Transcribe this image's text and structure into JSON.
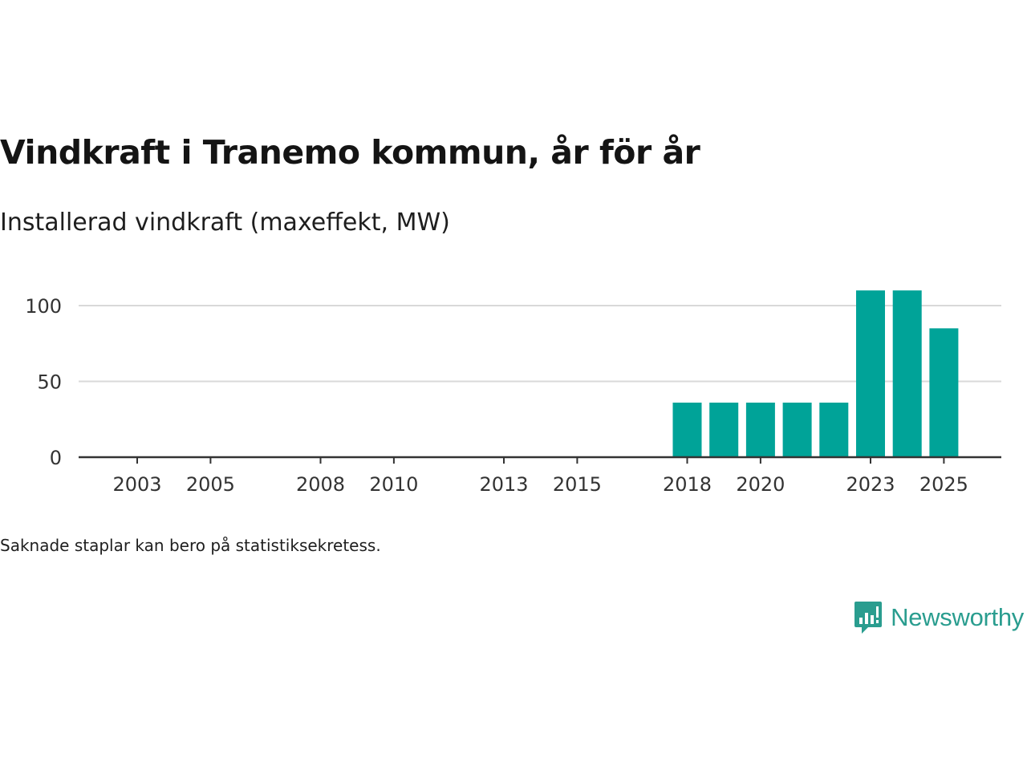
{
  "title": "Vindkraft i Tranemo kommun, år för år",
  "subtitle": "Installerad vindkraft (maxeffekt, MW)",
  "footnote": "Saknade staplar kan bero på statistiksekretess.",
  "brand": {
    "name": "Newsworthy",
    "icon": "bar-chart-speech-bubble-icon",
    "color": "#2a9d8f"
  },
  "colors": {
    "bar": "#00a398",
    "grid": "#d9d9d9",
    "axis": "#333333",
    "tick_text": "#333333"
  },
  "chart_data": {
    "type": "bar",
    "title": "Vindkraft i Tranemo kommun, år för år",
    "subtitle": "Installerad vindkraft (maxeffekt, MW)",
    "xlabel": "",
    "ylabel": "",
    "x": [
      2003,
      2004,
      2005,
      2006,
      2007,
      2008,
      2009,
      2010,
      2011,
      2012,
      2013,
      2014,
      2015,
      2016,
      2017,
      2018,
      2019,
      2020,
      2021,
      2022,
      2023,
      2024,
      2025
    ],
    "values": [
      0,
      0,
      0,
      0,
      0,
      0,
      0,
      0,
      0,
      0,
      0,
      0,
      0,
      0,
      0,
      36,
      36,
      36,
      36,
      36,
      110,
      110,
      85
    ],
    "x_ticks": [
      2003,
      2005,
      2008,
      2010,
      2013,
      2015,
      2018,
      2020,
      2023,
      2025
    ],
    "y_ticks": [
      0,
      50,
      100
    ],
    "ylim": [
      0,
      110
    ],
    "grid": true,
    "legend": "none"
  }
}
